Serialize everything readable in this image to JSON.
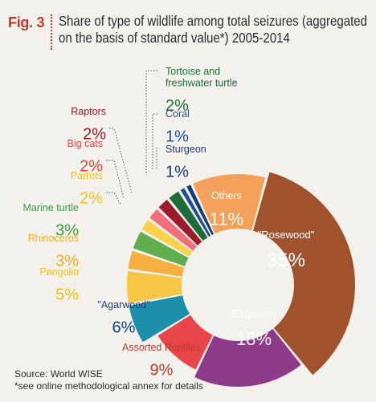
{
  "figure": {
    "label": "Fig. 3",
    "title_line1": "Share of type of wildlife among total seizures (aggregated",
    "title_line2": "on the basis of standard value*) 2005-2014"
  },
  "source": {
    "line1": "Source: World WISE",
    "line2": "*see online methodological annex for details"
  },
  "chart_data": {
    "type": "pie",
    "title": "Share of type of wildlife among total seizures (aggregated on the basis of standard value*) 2005-2014",
    "variant": "donut",
    "slices": [
      {
        "name": "\"Rosewood\"",
        "value": 35,
        "label": "35%",
        "color": "#a0522d"
      },
      {
        "name": "Elephant",
        "value": 18,
        "label": "18%",
        "color": "#8e3a8a"
      },
      {
        "name": "Assorted Reptiles",
        "value": 9,
        "label": "9%",
        "color": "#e8454a"
      },
      {
        "name": "\"Agarwood\"",
        "value": 6,
        "label": "6%",
        "color": "#1e8fa8"
      },
      {
        "name": "Pangolin",
        "value": 5,
        "label": "5%",
        "color": "#f6c744"
      },
      {
        "name": "Rhinoceros",
        "value": 3,
        "label": "3%",
        "color": "#f6b040"
      },
      {
        "name": "Marine turtle",
        "value": 3,
        "label": "3%",
        "color": "#5fae4f"
      },
      {
        "name": "Parrots",
        "value": 2,
        "label": "2%",
        "color": "#f7d24a"
      },
      {
        "name": "Big cats",
        "value": 2,
        "label": "2%",
        "color": "#ef6f7d"
      },
      {
        "name": "Raptors",
        "value": 2,
        "label": "2%",
        "color": "#9b1c2a"
      },
      {
        "name": "Tortoise and freshwater turtle",
        "value": 2,
        "label": "2%",
        "color": "#1f6b3a"
      },
      {
        "name": "Coral",
        "value": 1,
        "label": "1%",
        "color": "#1f4f9a"
      },
      {
        "name": "Sturgeon",
        "value": 1,
        "label": "1%",
        "color": "#173b7a"
      },
      {
        "name": "Others",
        "value": 11,
        "label": "11%",
        "color": "#f4a05a"
      }
    ]
  }
}
